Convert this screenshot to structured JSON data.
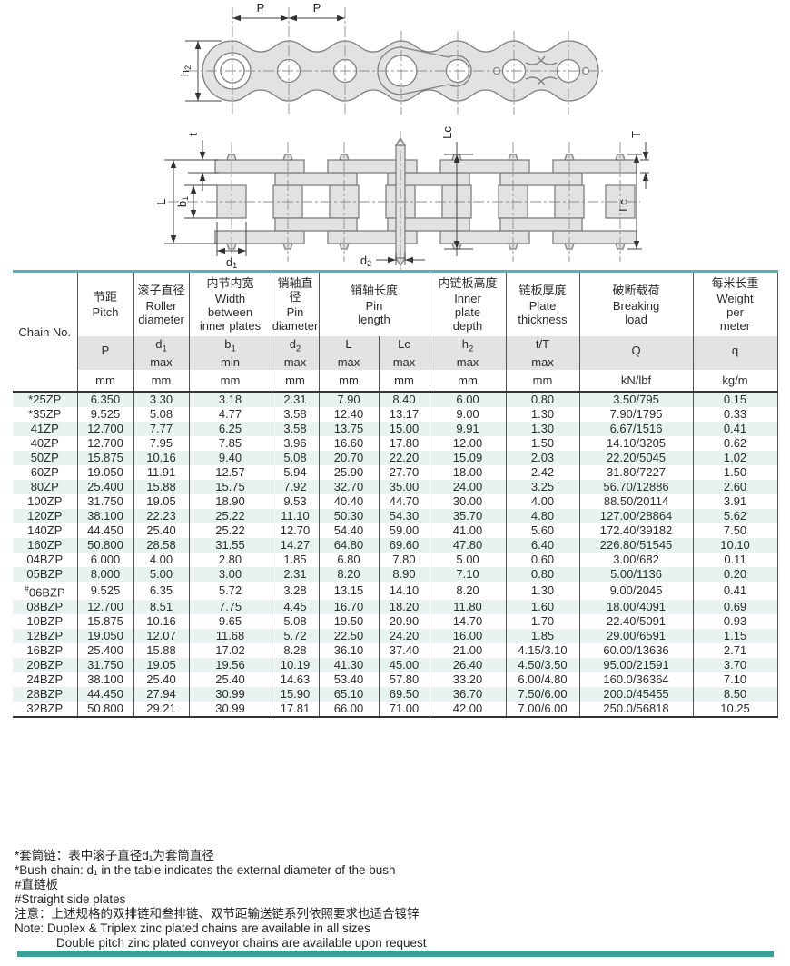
{
  "diagrams": {
    "side_view": {
      "p1": "P",
      "p2": "P",
      "h_main": "h",
      "h_sub": "2"
    },
    "plan_view": {
      "t": "t",
      "L": "L",
      "b_main": "b",
      "b_sub": "1",
      "d1_main": "d",
      "d1_sub": "1",
      "d2_main": "d",
      "d2_sub": "2",
      "lc_top": "Lc",
      "lc_right": "Lc",
      "T": "T"
    }
  },
  "table": {
    "chain_no_header": "Chain No.",
    "groups": [
      {
        "zh": "节距",
        "en": "Pitch"
      },
      {
        "zh": "滚子直径",
        "en": "Roller diameter"
      },
      {
        "zh": "内节内宽",
        "en": "Width between inner plates"
      },
      {
        "zh": "销轴直径",
        "en": "Pin diameter"
      },
      {
        "zh": "销轴长度",
        "en": "Pin length"
      },
      {
        "zh": "内链板高度",
        "en": "Inner plate depth"
      },
      {
        "zh": "链板厚度",
        "en": "Plate thickness"
      },
      {
        "zh": "破断载荷",
        "en": "Breaking load"
      },
      {
        "zh": "每米长重",
        "en": "Weight per meter"
      }
    ],
    "symbols": [
      {
        "main": "P",
        "sub": "",
        "qual": ""
      },
      {
        "main": "d",
        "sub": "1",
        "qual": "max"
      },
      {
        "main": "b",
        "sub": "1",
        "qual": "min"
      },
      {
        "main": "d",
        "sub": "2",
        "qual": "max"
      },
      {
        "main": "L",
        "sub": "",
        "qual": "max"
      },
      {
        "main": "Lc",
        "sub": "",
        "qual": "max"
      },
      {
        "main": "h",
        "sub": "2",
        "qual": "max"
      },
      {
        "main": "t/T",
        "sub": "",
        "qual": "max"
      },
      {
        "main": "Q",
        "sub": "",
        "qual": ""
      },
      {
        "main": "q",
        "sub": "",
        "qual": ""
      }
    ],
    "units": [
      "mm",
      "mm",
      "mm",
      "mm",
      "mm",
      "mm",
      "mm",
      "mm",
      "kN/lbf",
      "kg/m"
    ],
    "rows": [
      {
        "no": "*25ZP",
        "values": [
          "6.350",
          "3.30",
          "3.18",
          "2.31",
          "7.90",
          "8.40",
          "6.00",
          "0.80",
          "3.50/795",
          "0.15"
        ]
      },
      {
        "no": "*35ZP",
        "values": [
          "9.525",
          "5.08",
          "4.77",
          "3.58",
          "12.40",
          "13.17",
          "9.00",
          "1.30",
          "7.90/1795",
          "0.33"
        ]
      },
      {
        "no": "41ZP",
        "values": [
          "12.700",
          "7.77",
          "6.25",
          "3.58",
          "13.75",
          "15.00",
          "9.91",
          "1.30",
          "6.67/1516",
          "0.41"
        ]
      },
      {
        "no": "40ZP",
        "values": [
          "12.700",
          "7.95",
          "7.85",
          "3.96",
          "16.60",
          "17.80",
          "12.00",
          "1.50",
          "14.10/3205",
          "0.62"
        ]
      },
      {
        "no": "50ZP",
        "values": [
          "15.875",
          "10.16",
          "9.40",
          "5.08",
          "20.70",
          "22.20",
          "15.09",
          "2.03",
          "22.20/5045",
          "1.02"
        ]
      },
      {
        "no": "60ZP",
        "values": [
          "19.050",
          "11.91",
          "12.57",
          "5.94",
          "25.90",
          "27.70",
          "18.00",
          "2.42",
          "31.80/7227",
          "1.50"
        ]
      },
      {
        "no": "80ZP",
        "values": [
          "25.400",
          "15.88",
          "15.75",
          "7.92",
          "32.70",
          "35.00",
          "24.00",
          "3.25",
          "56.70/12886",
          "2.60"
        ]
      },
      {
        "no": "100ZP",
        "values": [
          "31.750",
          "19.05",
          "18.90",
          "9.53",
          "40.40",
          "44.70",
          "30.00",
          "4.00",
          "88.50/20114",
          "3.91"
        ]
      },
      {
        "no": "120ZP",
        "values": [
          "38.100",
          "22.23",
          "25.22",
          "11.10",
          "50.30",
          "54.30",
          "35.70",
          "4.80",
          "127.00/28864",
          "5.62"
        ]
      },
      {
        "no": "140ZP",
        "values": [
          "44.450",
          "25.40",
          "25.22",
          "12.70",
          "54.40",
          "59.00",
          "41.00",
          "5.60",
          "172.40/39182",
          "7.50"
        ]
      },
      {
        "no": "160ZP",
        "values": [
          "50.800",
          "28.58",
          "31.55",
          "14.27",
          "64.80",
          "69.60",
          "47.80",
          "6.40",
          "226.80/51545",
          "10.10"
        ]
      },
      {
        "no": "04BZP",
        "values": [
          "6.000",
          "4.00",
          "2.80",
          "1.85",
          "6.80",
          "7.80",
          "5.00",
          "0.60",
          "3.00/682",
          "0.11"
        ]
      },
      {
        "no": "05BZP",
        "values": [
          "8.000",
          "5.00",
          "3.00",
          "2.31",
          "8.20",
          "8.90",
          "7.10",
          "0.80",
          "5.00/1136",
          "0.20"
        ]
      },
      {
        "no": "#06BZP",
        "values": [
          "9.525",
          "6.35",
          "5.72",
          "3.28",
          "13.15",
          "14.10",
          "8.20",
          "1.30",
          "9.00/2045",
          "0.41"
        ]
      },
      {
        "no": "08BZP",
        "values": [
          "12.700",
          "8.51",
          "7.75",
          "4.45",
          "16.70",
          "18.20",
          "11.80",
          "1.60",
          "18.00/4091",
          "0.69"
        ]
      },
      {
        "no": "10BZP",
        "values": [
          "15.875",
          "10.16",
          "9.65",
          "5.08",
          "19.50",
          "20.90",
          "14.70",
          "1.70",
          "22.40/5091",
          "0.93"
        ]
      },
      {
        "no": "12BZP",
        "values": [
          "19.050",
          "12.07",
          "11.68",
          "5.72",
          "22.50",
          "24.20",
          "16.00",
          "1.85",
          "29.00/6591",
          "1.15"
        ]
      },
      {
        "no": "16BZP",
        "values": [
          "25.400",
          "15.88",
          "17.02",
          "8.28",
          "36.10",
          "37.40",
          "21.00",
          "4.15/3.10",
          "60.00/13636",
          "2.71"
        ]
      },
      {
        "no": "20BZP",
        "values": [
          "31.750",
          "19.05",
          "19.56",
          "10.19",
          "41.30",
          "45.00",
          "26.40",
          "4.50/3.50",
          "95.00/21591",
          "3.70"
        ]
      },
      {
        "no": "24BZP",
        "values": [
          "38.100",
          "25.40",
          "25.40",
          "14.63",
          "53.40",
          "57.80",
          "33.20",
          "6.00/4.80",
          "160.0/36364",
          "7.10"
        ]
      },
      {
        "no": "28BZP",
        "values": [
          "44.450",
          "27.94",
          "30.99",
          "15.90",
          "65.10",
          "69.50",
          "36.70",
          "7.50/6.00",
          "200.0/45455",
          "8.50"
        ]
      },
      {
        "no": "32BZP",
        "values": [
          "50.800",
          "29.21",
          "30.99",
          "17.81",
          "66.00",
          "71.00",
          "42.00",
          "7.00/6.00",
          "250.0/56818",
          "10.25"
        ]
      }
    ]
  },
  "footnotes": {
    "lines": [
      "*套筒链：表中滚子直径d₁为套筒直径",
      "*Bush chain: d₁ in the table indicates the external diameter of the bush",
      "#直链板",
      "#Straight side plates",
      "注意：上述规格的双排链和叁排链、双节距输送链系列依照要求也适合镀锌",
      "Note:  Duplex & Triplex zinc plated chains are available in all sizes",
      "Double pitch zinc plated conveyor chains are available upon request"
    ]
  },
  "colors": {
    "accent_teal_line": "#58b2ad",
    "bottom_bar_teal": "#3d9e99",
    "row_stripe": "#e7f2f1",
    "symbol_row_bg": "#e3e3e3"
  }
}
